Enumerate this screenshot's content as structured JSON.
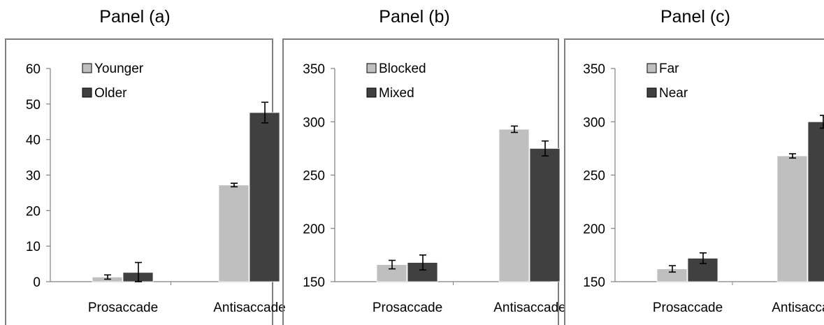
{
  "colors": {
    "light": "#bfbfbf",
    "dark": "#404040",
    "frame": "#7f7f7f",
    "axis": "#808080"
  },
  "chart_data": [
    {
      "type": "bar",
      "title": "Panel (a)",
      "categories": [
        "Prosaccade",
        "Antisaccade"
      ],
      "series": [
        {
          "name": "Younger",
          "values": [
            1.3,
            27.2
          ],
          "errors": [
            0.6,
            0.5
          ]
        },
        {
          "name": "Older",
          "values": [
            2.6,
            47.6
          ],
          "errors": [
            2.8,
            2.9
          ]
        }
      ],
      "ylim": [
        0,
        60
      ],
      "yticks": [
        0,
        10,
        20,
        30,
        40,
        50,
        60
      ],
      "legend": "top-left"
    },
    {
      "type": "bar",
      "title": "Panel (b)",
      "categories": [
        "Prosaccade",
        "Antisaccade"
      ],
      "series": [
        {
          "name": "Blocked",
          "values": [
            166,
            293
          ],
          "errors": [
            4,
            3
          ]
        },
        {
          "name": "Mixed",
          "values": [
            168,
            275
          ],
          "errors": [
            7,
            7
          ]
        }
      ],
      "ylim": [
        150,
        350
      ],
      "yticks": [
        150,
        200,
        250,
        300,
        350
      ],
      "legend": "top-left"
    },
    {
      "type": "bar",
      "title": "Panel (c)",
      "categories": [
        "Prosaccade",
        "Antisaccade"
      ],
      "series": [
        {
          "name": "Far",
          "values": [
            162,
            268
          ],
          "errors": [
            3,
            2
          ]
        },
        {
          "name": "Near",
          "values": [
            172,
            300
          ],
          "errors": [
            5,
            6
          ]
        }
      ],
      "ylim": [
        150,
        350
      ],
      "yticks": [
        150,
        200,
        250,
        300,
        350
      ],
      "legend": "top-left"
    }
  ]
}
